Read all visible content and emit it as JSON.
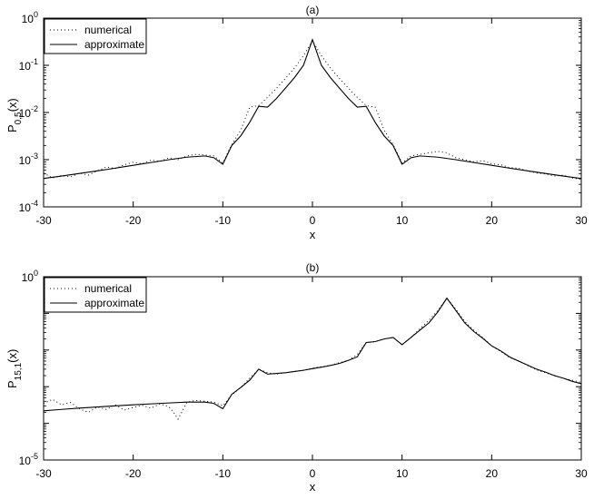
{
  "chart_data": [
    {
      "type": "line",
      "title": "(a)",
      "xlabel": "x",
      "ylabel_main": "P",
      "ylabel_sub": "0,5",
      "ylabel_tail": "(x)",
      "xlim": [
        -30,
        30
      ],
      "ylim": [
        0.0001,
        1
      ],
      "yscale": "log",
      "xticks": [
        -30,
        -20,
        -10,
        0,
        10,
        20,
        30
      ],
      "yticks": [
        {
          "value": 1,
          "base": "10",
          "exp": "0"
        },
        {
          "value": 0.1,
          "base": "10",
          "exp": "-1"
        },
        {
          "value": 0.01,
          "base": "10",
          "exp": "-2"
        },
        {
          "value": 0.001,
          "base": "10",
          "exp": "-3"
        },
        {
          "value": 0.0001,
          "base": "10",
          "exp": "-4"
        }
      ],
      "legend": {
        "position": "top-left",
        "entries": [
          "numerical",
          "approximate"
        ]
      },
      "series": [
        {
          "name": "numerical",
          "style": "dotted",
          "x": [
            -30,
            -29,
            -28,
            -27,
            -26,
            -25,
            -24,
            -23,
            -22,
            -21,
            -20,
            -19,
            -18,
            -17,
            -16,
            -15,
            -14,
            -13,
            -12,
            -11,
            -10,
            -9,
            -8,
            -7,
            -6,
            -5,
            -4,
            -3,
            -2,
            -1,
            0,
            1,
            2,
            3,
            4,
            5,
            6,
            7,
            8,
            9,
            10,
            11,
            12,
            13,
            14,
            15,
            16,
            17,
            18,
            19,
            20,
            21,
            22,
            23,
            24,
            25,
            26,
            27,
            28,
            29,
            30
          ],
          "y": [
            0.00052,
            0.00041,
            0.00046,
            0.00043,
            0.00052,
            0.00047,
            0.00058,
            0.0007,
            0.00065,
            0.00078,
            0.00088,
            0.00082,
            0.00098,
            0.00092,
            0.0011,
            0.001,
            0.0012,
            0.0013,
            0.00125,
            0.0012,
            0.00085,
            0.0021,
            0.0042,
            0.013,
            0.014,
            0.021,
            0.033,
            0.053,
            0.088,
            0.16,
            0.33,
            0.16,
            0.088,
            0.053,
            0.033,
            0.021,
            0.014,
            0.013,
            0.0042,
            0.0021,
            0.00085,
            0.0012,
            0.0013,
            0.0014,
            0.0015,
            0.0014,
            0.0011,
            0.001,
            0.0009,
            0.00095,
            0.00082,
            0.00078,
            0.00068,
            0.00066,
            0.00058,
            0.00052,
            0.0005,
            0.00045,
            0.00047,
            0.00041,
            0.00038
          ]
        },
        {
          "name": "approximate",
          "style": "solid",
          "x": [
            -30,
            -28,
            -26,
            -24,
            -22,
            -20,
            -18,
            -16,
            -14,
            -12,
            -11,
            -10,
            -9,
            -8,
            -7,
            -6,
            -5,
            -4,
            -3,
            -2,
            -1,
            0,
            1,
            2,
            3,
            4,
            5,
            6,
            7,
            8,
            9,
            10,
            11,
            12,
            14,
            16,
            18,
            20,
            22,
            24,
            26,
            28,
            30
          ],
          "y": [
            0.0004,
            0.00045,
            0.00051,
            0.00058,
            0.00066,
            0.00076,
            0.00087,
            0.001,
            0.00113,
            0.0012,
            0.0011,
            0.0008,
            0.002,
            0.0032,
            0.0062,
            0.0135,
            0.013,
            0.02,
            0.033,
            0.055,
            0.1,
            0.35,
            0.1,
            0.055,
            0.033,
            0.02,
            0.013,
            0.0135,
            0.0062,
            0.0032,
            0.002,
            0.0008,
            0.0011,
            0.0012,
            0.00113,
            0.001,
            0.00087,
            0.00076,
            0.00066,
            0.00058,
            0.00051,
            0.00045,
            0.0004
          ]
        }
      ]
    },
    {
      "type": "line",
      "title": "(b)",
      "xlabel": "x",
      "ylabel_main": "P",
      "ylabel_sub": "15,1",
      "ylabel_tail": "(x)",
      "xlim": [
        -30,
        30
      ],
      "ylim": [
        1e-05,
        1
      ],
      "yscale": "log",
      "xticks": [
        -30,
        -20,
        -10,
        0,
        10,
        20,
        30
      ],
      "yticks": [
        {
          "value": 1,
          "base": "10",
          "exp": "0"
        },
        {
          "value": 1e-05,
          "base": "10",
          "exp": "-5"
        }
      ],
      "legend": {
        "position": "top-left",
        "entries": [
          "numerical",
          "approximate"
        ]
      },
      "series": [
        {
          "name": "numerical",
          "style": "dotted",
          "x": [
            -30,
            -29,
            -28,
            -27,
            -26,
            -25,
            -24,
            -23,
            -22,
            -21,
            -20,
            -19,
            -18,
            -17,
            -16,
            -15.5,
            -15,
            -14.5,
            -14,
            -13,
            -12,
            -11,
            -10,
            -9,
            -8,
            -7,
            -6,
            -5,
            -4,
            -3,
            -2,
            -1,
            0,
            1,
            2,
            3,
            4,
            5,
            6,
            7,
            8,
            9,
            10,
            11,
            12,
            13,
            14,
            15,
            16,
            17,
            18,
            19,
            20,
            21,
            22,
            23,
            24,
            25,
            26,
            27,
            28,
            29,
            30
          ],
          "y": [
            0.00035,
            0.00045,
            0.00032,
            0.00037,
            0.00025,
            0.0002,
            0.00028,
            0.00024,
            0.00032,
            0.00023,
            0.00027,
            0.00031,
            0.00026,
            0.00034,
            0.00028,
            0.0002,
            0.00013,
            0.00022,
            0.00038,
            0.00042,
            0.0004,
            0.00038,
            0.0003,
            0.0006,
            0.00095,
            0.0017,
            0.003,
            0.0024,
            0.0022,
            0.0024,
            0.0026,
            0.0028,
            0.0032,
            0.0035,
            0.0038,
            0.0045,
            0.0052,
            0.0075,
            0.016,
            0.017,
            0.02,
            0.022,
            0.014,
            0.022,
            0.038,
            0.065,
            0.12,
            0.26,
            0.13,
            0.06,
            0.035,
            0.022,
            0.013,
            0.0092,
            0.0062,
            0.0051,
            0.0038,
            0.0029,
            0.0024,
            0.002,
            0.0017,
            0.0015,
            0.0013
          ]
        },
        {
          "name": "approximate",
          "style": "solid",
          "x": [
            -30,
            -28,
            -26,
            -24,
            -22,
            -20,
            -18,
            -16,
            -14,
            -12,
            -11,
            -10,
            -9,
            -8,
            -7,
            -6,
            -5,
            -4,
            -3,
            -2,
            -1,
            0,
            1,
            2,
            3,
            4,
            5,
            6,
            7,
            8,
            9,
            10,
            11,
            12,
            13,
            14,
            15,
            16,
            17,
            18,
            19,
            20,
            21,
            22,
            23,
            24,
            25,
            26,
            27,
            28,
            29,
            30
          ],
          "y": [
            0.00022,
            0.00024,
            0.00026,
            0.00028,
            0.0003,
            0.00032,
            0.00034,
            0.00036,
            0.00038,
            0.00038,
            0.00035,
            0.00025,
            0.00062,
            0.00095,
            0.0015,
            0.003,
            0.0022,
            0.0023,
            0.0024,
            0.0026,
            0.0028,
            0.0031,
            0.0034,
            0.0038,
            0.0043,
            0.0052,
            0.0065,
            0.016,
            0.017,
            0.02,
            0.022,
            0.014,
            0.022,
            0.035,
            0.055,
            0.11,
            0.26,
            0.12,
            0.055,
            0.032,
            0.021,
            0.013,
            0.0095,
            0.0065,
            0.005,
            0.0039,
            0.003,
            0.0025,
            0.002,
            0.0017,
            0.0014,
            0.0012
          ]
        }
      ]
    }
  ]
}
